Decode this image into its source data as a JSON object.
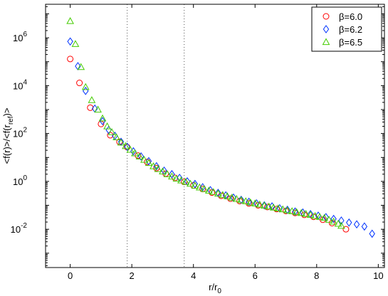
{
  "chart_data": {
    "type": "scatter",
    "title": "",
    "xlabel": "r/r",
    "xlabel_sub": "0",
    "ylabel": "<f(r)>/<f(r",
    "ylabel_sub": "ref",
    "ylabel_tail": ")>",
    "y_scale": "log",
    "xlim": [
      -0.8,
      10.2
    ],
    "ylim_log10": [
      -3.6,
      7.4
    ],
    "x_ticks": [
      0,
      2,
      4,
      6,
      8,
      10
    ],
    "x_tick_labels": [
      "0",
      "2",
      "4",
      "6",
      "8",
      "10"
    ],
    "y_ticks_exp": [
      -2,
      0,
      2,
      4,
      6
    ],
    "y_tick_labels": [
      {
        "base": "10",
        "exp": "-2"
      },
      {
        "base": "10",
        "exp": "0"
      },
      {
        "base": "10",
        "exp": "2"
      },
      {
        "base": "10",
        "exp": "4"
      },
      {
        "base": "10",
        "exp": "6"
      }
    ],
    "vlines": [
      1.85,
      3.7
    ],
    "grid": false,
    "legend_placement": "top-right",
    "series": [
      {
        "name": "β=6.0",
        "marker": "circle",
        "color": "#ff0000",
        "points": [
          [
            0.0,
            130000
          ],
          [
            0.3,
            13000
          ],
          [
            0.65,
            1200
          ],
          [
            1.0,
            250
          ],
          [
            1.3,
            85
          ],
          [
            1.6,
            45
          ],
          [
            1.85,
            27
          ],
          [
            2.2,
            12
          ],
          [
            2.5,
            6.5
          ],
          [
            2.8,
            3.6
          ],
          [
            3.1,
            2.1
          ],
          [
            3.4,
            1.4
          ],
          [
            3.7,
            0.95
          ],
          [
            4.0,
            0.68
          ],
          [
            4.3,
            0.48
          ],
          [
            4.6,
            0.34
          ],
          [
            4.9,
            0.25
          ],
          [
            5.2,
            0.19
          ],
          [
            5.5,
            0.15
          ],
          [
            5.8,
            0.12
          ],
          [
            6.1,
            0.1
          ],
          [
            6.4,
            0.085
          ],
          [
            6.7,
            0.07
          ],
          [
            7.0,
            0.058
          ],
          [
            7.3,
            0.048
          ],
          [
            7.6,
            0.04
          ],
          [
            7.9,
            0.033
          ],
          [
            8.2,
            0.025
          ],
          [
            8.5,
            0.018
          ],
          [
            8.95,
            0.01
          ]
        ]
      },
      {
        "name": "β=6.2",
        "marker": "diamond",
        "color": "#0033ff",
        "points": [
          [
            0.0,
            700000
          ],
          [
            0.25,
            65000
          ],
          [
            0.5,
            6000
          ],
          [
            0.8,
            1100
          ],
          [
            1.05,
            330
          ],
          [
            1.25,
            140
          ],
          [
            1.45,
            80
          ],
          [
            1.65,
            45
          ],
          [
            1.85,
            28
          ],
          [
            2.05,
            18
          ],
          [
            2.3,
            11
          ],
          [
            2.55,
            7
          ],
          [
            2.8,
            4.3
          ],
          [
            3.05,
            2.8
          ],
          [
            3.3,
            2.0
          ],
          [
            3.55,
            1.4
          ],
          [
            3.8,
            1.0
          ],
          [
            4.05,
            0.78
          ],
          [
            4.3,
            0.57
          ],
          [
            4.55,
            0.43
          ],
          [
            4.8,
            0.33
          ],
          [
            5.05,
            0.26
          ],
          [
            5.3,
            0.21
          ],
          [
            5.55,
            0.17
          ],
          [
            5.8,
            0.14
          ],
          [
            6.05,
            0.12
          ],
          [
            6.3,
            0.1
          ],
          [
            6.55,
            0.09
          ],
          [
            6.8,
            0.075
          ],
          [
            7.05,
            0.065
          ],
          [
            7.3,
            0.055
          ],
          [
            7.55,
            0.05
          ],
          [
            7.8,
            0.043
          ],
          [
            8.05,
            0.037
          ],
          [
            8.3,
            0.032
          ],
          [
            8.55,
            0.027
          ],
          [
            8.8,
            0.023
          ],
          [
            9.05,
            0.019
          ],
          [
            9.3,
            0.016
          ],
          [
            9.55,
            0.013
          ],
          [
            9.8,
            0.0065
          ]
        ]
      },
      {
        "name": "β=6.5",
        "marker": "triangle",
        "color": "#44cc00",
        "points": [
          [
            0.0,
            5000000
          ],
          [
            0.17,
            550000
          ],
          [
            0.35,
            60000
          ],
          [
            0.5,
            8800
          ],
          [
            0.7,
            2500
          ],
          [
            0.9,
            1000
          ],
          [
            1.05,
            430
          ],
          [
            1.2,
            200
          ],
          [
            1.35,
            115
          ],
          [
            1.5,
            70
          ],
          [
            1.65,
            42
          ],
          [
            1.8,
            30
          ],
          [
            1.95,
            21
          ],
          [
            2.1,
            15
          ],
          [
            2.25,
            11
          ],
          [
            2.4,
            8
          ],
          [
            2.55,
            5.9
          ],
          [
            2.7,
            4.3
          ],
          [
            2.85,
            3.3
          ],
          [
            3.0,
            2.6
          ],
          [
            3.15,
            2.0
          ],
          [
            3.3,
            1.6
          ],
          [
            3.45,
            1.3
          ],
          [
            3.6,
            1.1
          ],
          [
            3.75,
            0.95
          ],
          [
            3.9,
            0.8
          ],
          [
            4.05,
            0.66
          ],
          [
            4.2,
            0.56
          ],
          [
            4.35,
            0.48
          ],
          [
            4.5,
            0.41
          ],
          [
            4.65,
            0.36
          ],
          [
            4.8,
            0.31
          ],
          [
            4.95,
            0.27
          ],
          [
            5.1,
            0.24
          ],
          [
            5.25,
            0.21
          ],
          [
            5.4,
            0.185
          ],
          [
            5.55,
            0.165
          ],
          [
            5.7,
            0.148
          ],
          [
            5.85,
            0.133
          ],
          [
            6.0,
            0.12
          ],
          [
            6.15,
            0.108
          ],
          [
            6.3,
            0.098
          ],
          [
            6.45,
            0.089
          ],
          [
            6.6,
            0.081
          ],
          [
            6.75,
            0.074
          ],
          [
            6.9,
            0.068
          ],
          [
            7.05,
            0.062
          ],
          [
            7.2,
            0.057
          ],
          [
            7.35,
            0.052
          ],
          [
            7.5,
            0.048
          ],
          [
            7.65,
            0.044
          ],
          [
            7.8,
            0.04
          ],
          [
            7.95,
            0.036
          ],
          [
            8.1,
            0.033
          ],
          [
            8.25,
            0.03
          ],
          [
            8.4,
            0.025
          ],
          [
            8.55,
            0.021
          ],
          [
            8.7,
            0.017
          ],
          [
            8.8,
            0.014
          ]
        ]
      }
    ]
  }
}
